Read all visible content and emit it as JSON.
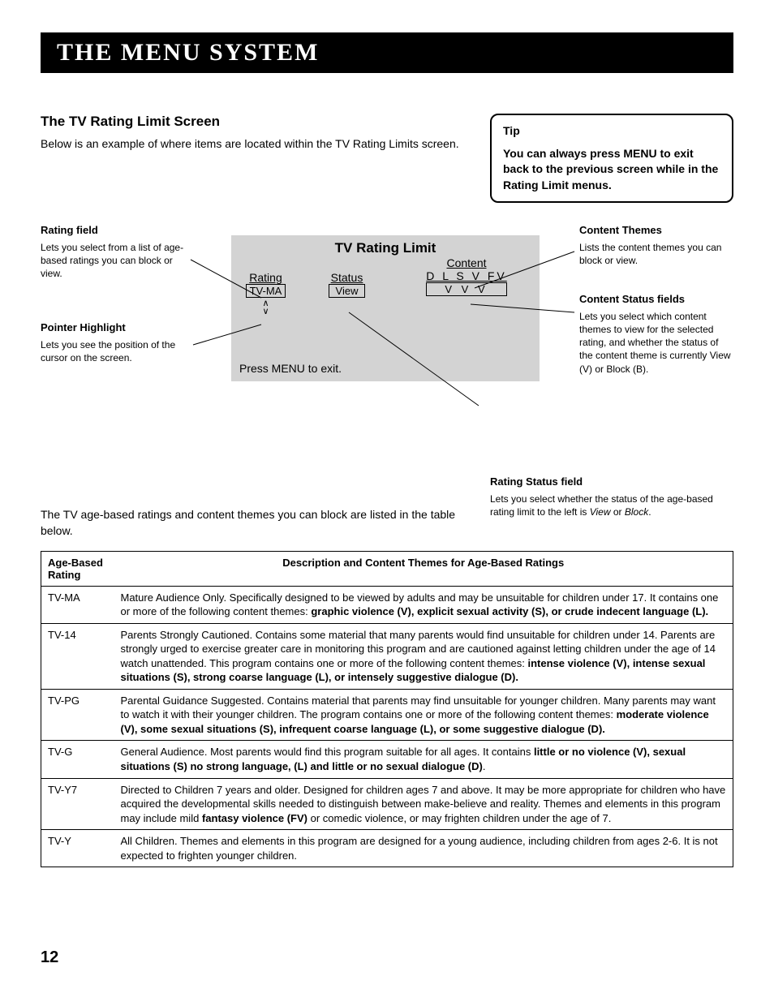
{
  "banner": "The Menu System",
  "subtitle": "The TV Rating Limit Screen",
  "intro": "Below is an example of where items are located within the TV Rating Limits screen.",
  "tip": {
    "label": "Tip",
    "body": "You can always press MENU to exit back to the previous screen while in the Rating Limit menus."
  },
  "callouts": {
    "rating_field": {
      "label": "Rating field",
      "body": "Lets you select from a list of age-based ratings you can block or view."
    },
    "pointer": {
      "label": "Pointer Highlight",
      "body": "Lets you see the position of the cursor on the screen."
    },
    "content_themes": {
      "label": "Content Themes",
      "body": "Lists the content themes you can block or view."
    },
    "content_status": {
      "label": "Content Status fields",
      "body": "Lets you select which content themes to view for the selected rating, and whether the status of the content theme is currently View (V) or Block (B)."
    },
    "rating_status": {
      "label": "Rating Status field",
      "body_a": "Lets you select whether the status of the age-based rating limit to the left is ",
      "body_b": "View",
      "body_c": " or ",
      "body_d": "Block",
      "body_e": "."
    }
  },
  "panel": {
    "title": "TV Rating Limit",
    "rating_label": "Rating",
    "rating_value": "TV-MA",
    "status_label": "Status",
    "status_value": "View",
    "content_label": "Content",
    "content_cols": "D  L  S  V  FV",
    "content_vals": "V V  V",
    "arrows_up": "∧",
    "arrows_down": "∨",
    "footer": "Press MENU to exit."
  },
  "bridge": "The TV age-based ratings and content themes you can block are listed in the table below.",
  "table": {
    "headers": [
      "Age-Based Rating",
      "Description and Content Themes for Age-Based Ratings"
    ],
    "rows": [
      {
        "code": "TV-MA",
        "lead": "Mature Audience Only. Specifically designed to be viewed by adults and may be unsuitable for children under 17.  It contains one or more of the following content themes:  ",
        "bold": "graphic violence (V), explicit sexual activity (S), or crude indecent language (L)."
      },
      {
        "code": "TV-14",
        "lead": "Parents Strongly Cautioned. Contains some material that many parents would find unsuitable for children under 14.  Parents are strongly urged to exercise greater care in monitoring this program and are cautioned against letting children under the age of 14 watch unattended.  This program contains one or more of the following content themes:  ",
        "bold": "intense violence (V), intense sexual situations (S), strong coarse language (L), or intensely suggestive dialogue (D)."
      },
      {
        "code": "TV-PG",
        "lead": "Parental Guidance Suggested. Contains material that parents may find unsuitable for younger children.  Many parents may want to watch it with their younger children.  The program contains one or more of the following content themes:  ",
        "bold": "moderate violence (V), some sexual situations (S), infrequent coarse language (L), or some suggestive dialogue (D)."
      },
      {
        "code": "TV-G",
        "lead": "General Audience. Most parents would find this program suitable for all ages.  It contains ",
        "bold": "little or no violence (V), sexual situations (S) no strong language, (L) and little or no sexual dialogue (D)",
        "tail": "."
      },
      {
        "code": "TV-Y7",
        "lead": "Directed to Children 7 years and older. Designed for children ages 7 and above.  It may be more appropriate for children who have acquired the developmental skills needed to distinguish between make-believe and reality.  Themes and elements in this program may include mild ",
        "bold": "fantasy violence (FV)",
        "tail": " or comedic violence, or may frighten children under the age of 7."
      },
      {
        "code": "TV-Y",
        "lead": "All Children. Themes and elements in this program are designed for a young audience, including children from ages 2-6. It is not expected to frighten younger children.",
        "bold": "",
        "tail": ""
      }
    ]
  },
  "page_number": "12"
}
